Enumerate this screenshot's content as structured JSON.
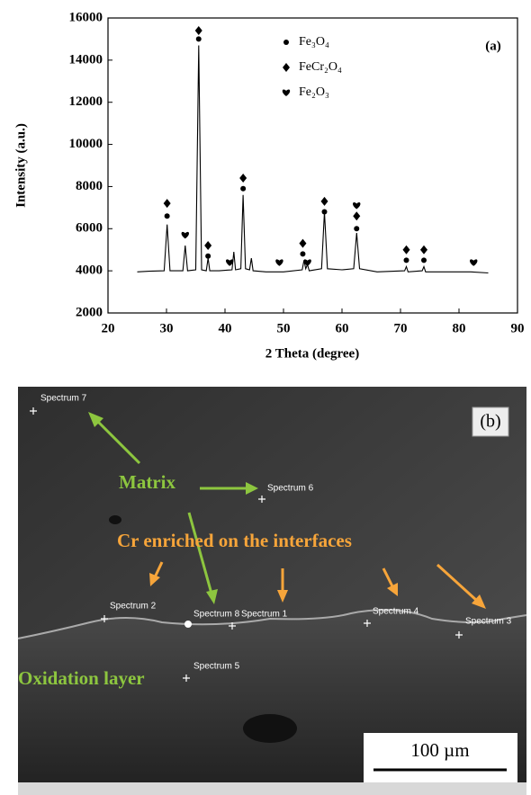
{
  "chart_data": {
    "type": "line",
    "panel_label": "(a)",
    "x_label": "2 Theta (degree)",
    "y_label": "Intensity (a.u.)",
    "xlim": [
      20,
      90
    ],
    "xticks": [
      20,
      30,
      40,
      50,
      60,
      70,
      80,
      90
    ],
    "ylim": [
      2000,
      16000
    ],
    "yticks": [
      2000,
      4000,
      6000,
      8000,
      10000,
      12000,
      14000,
      16000
    ],
    "grid": false,
    "series": [
      {
        "color": "#000000",
        "x": [
          25,
          27,
          29.6,
          30.1,
          30.6,
          32.8,
          33.2,
          33.6,
          35.0,
          35.5,
          36.0,
          36.8,
          37.1,
          37.4,
          39,
          41.2,
          41.5,
          41.8,
          42.7,
          43.1,
          43.5,
          44.2,
          44.5,
          44.8,
          47,
          50,
          53.2,
          53.5,
          53.8,
          54.1,
          54.4,
          56.5,
          57.0,
          57.5,
          60,
          62.0,
          62.5,
          63.0,
          66,
          70.7,
          71.0,
          71.3,
          73.7,
          74.0,
          74.3,
          78,
          82,
          85
        ],
        "values": [
          3950,
          3980,
          4000,
          6200,
          4000,
          4000,
          5200,
          4000,
          4050,
          14700,
          4050,
          4000,
          4600,
          4000,
          4000,
          4050,
          4900,
          4050,
          4100,
          7600,
          4100,
          4050,
          4600,
          4000,
          3950,
          3950,
          4050,
          4500,
          4100,
          4300,
          4000,
          4100,
          6800,
          4100,
          4050,
          4100,
          5800,
          4100,
          3950,
          4000,
          4200,
          3950,
          4000,
          4200,
          3950,
          3950,
          3950,
          3900
        ]
      },
      {
        "name": "Fe₃O₄",
        "marker": "circle",
        "color": "#000000",
        "x": [
          30.1,
          35.5,
          37.1,
          43.1,
          53.3,
          57.0,
          62.5,
          71.0,
          74.0
        ],
        "values": [
          6600,
          15000,
          4700,
          7900,
          4800,
          6800,
          6000,
          4500,
          4500
        ]
      },
      {
        "name": "FeCr₂O₄",
        "marker": "diamond",
        "color": "#000000",
        "x": [
          30.1,
          35.5,
          37.1,
          43.1,
          53.3,
          57.0,
          62.5,
          71.0,
          74.0
        ],
        "values": [
          7200,
          15400,
          5200,
          8400,
          5300,
          7300,
          6600,
          5000,
          5000
        ]
      },
      {
        "name": "Fe₂O₃",
        "marker": "heart",
        "color": "#000000",
        "x": [
          33.2,
          40.8,
          49.3,
          54.1,
          62.5,
          82.5
        ],
        "values": [
          5700,
          4400,
          4400,
          4400,
          7100,
          4400
        ]
      }
    ]
  },
  "sem_image": {
    "panel_label": "(b)",
    "spectra": [
      "Spectrum 1",
      "Spectrum 2",
      "Spectrum 3",
      "Spectrum 4",
      "Spectrum 5",
      "Spectrum 6",
      "Spectrum 7",
      "Spectrum 8"
    ],
    "annotations": [
      "Matrix",
      "Cr enriched on the interfaces",
      "Oxidation layer"
    ],
    "scale_bar": "100 µm"
  }
}
